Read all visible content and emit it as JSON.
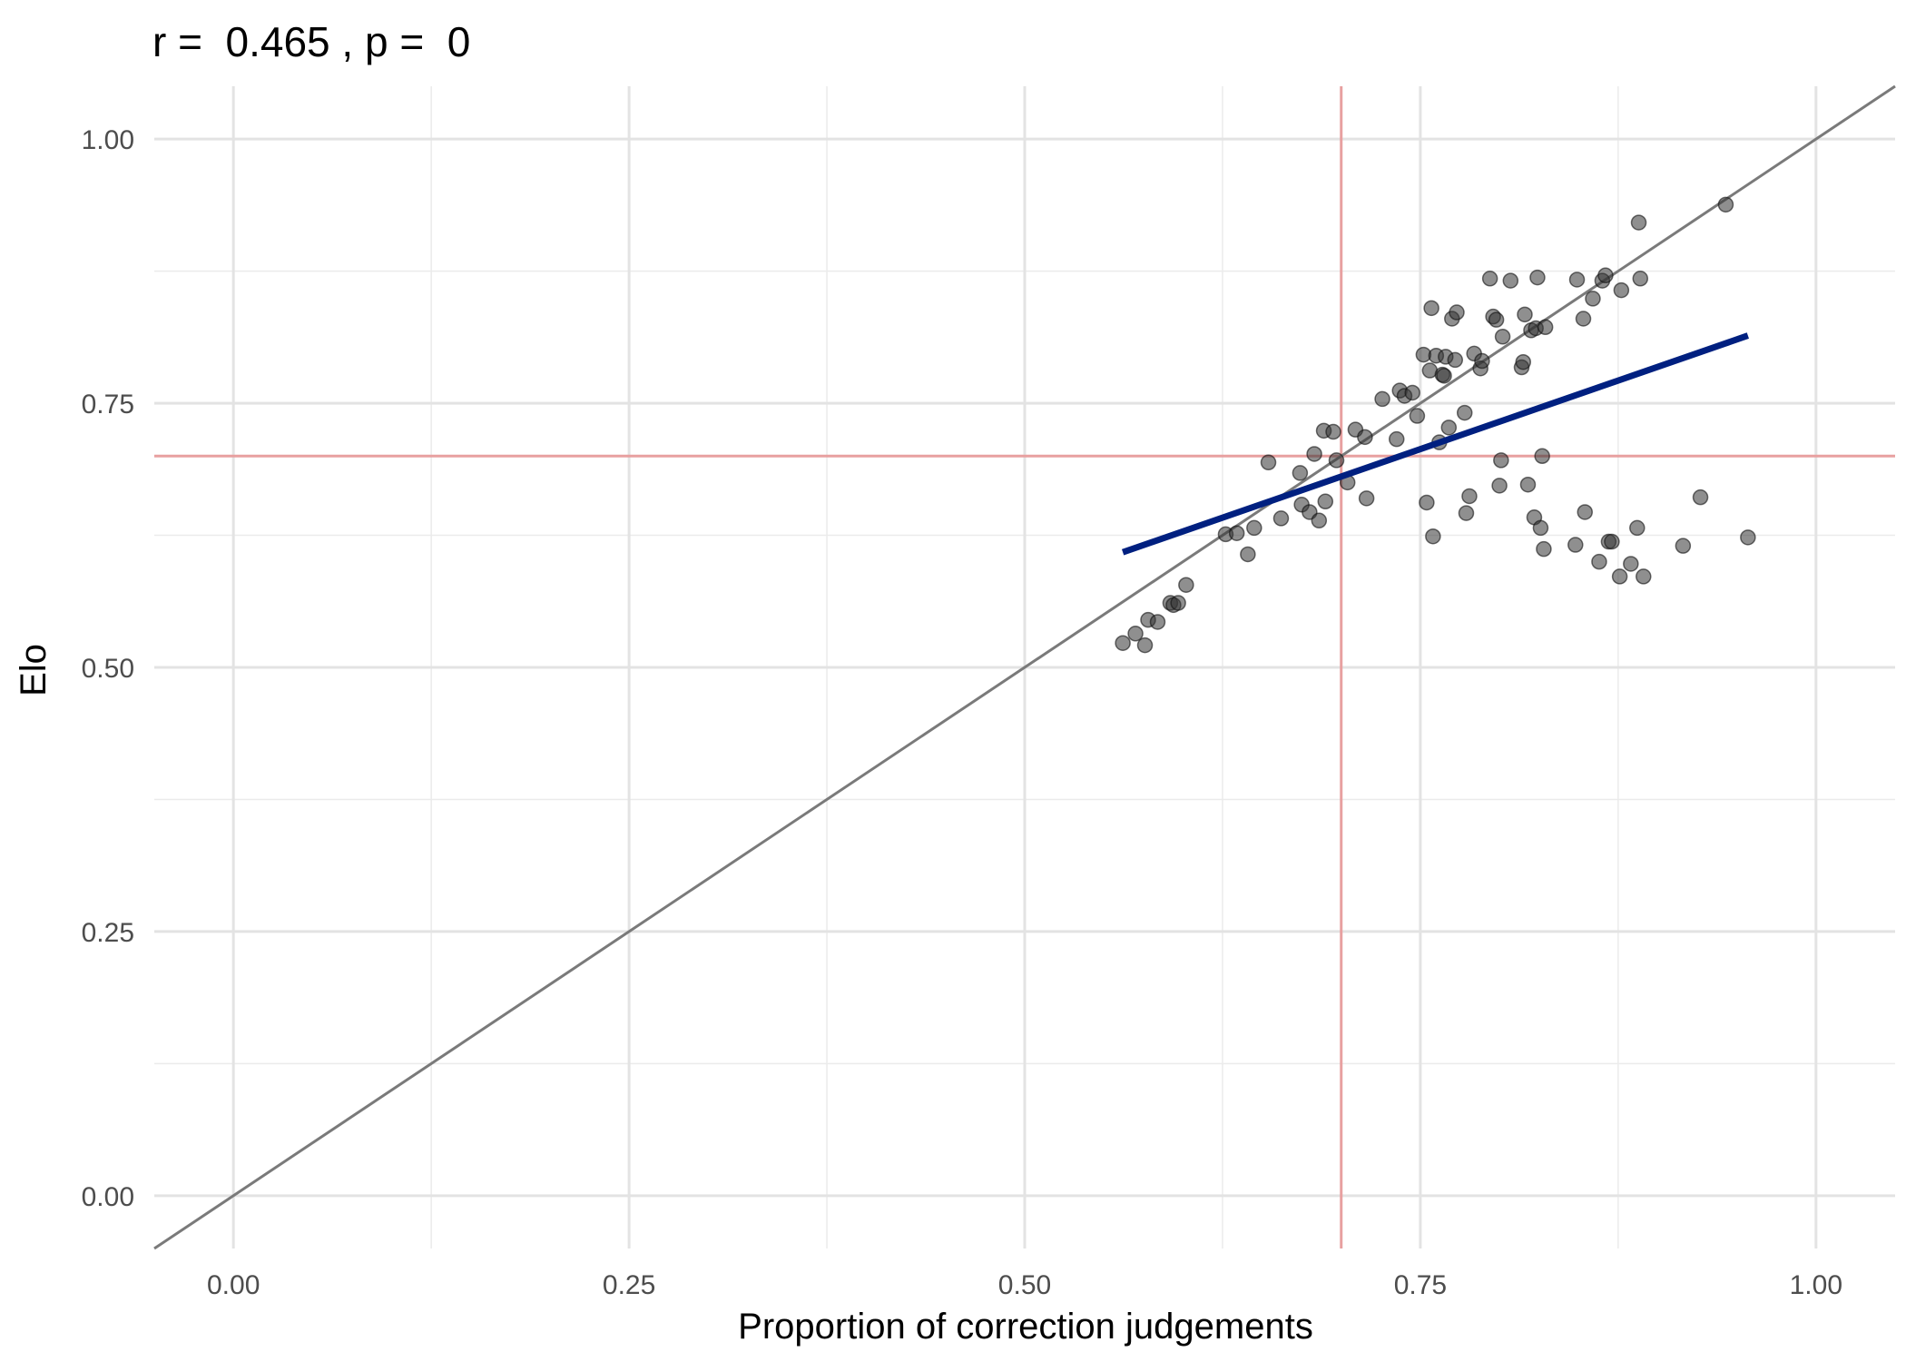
{
  "chart_data": {
    "type": "scatter",
    "title": "r =  0.465 , p =  0",
    "xlabel": "Proportion of correction judgements",
    "ylabel": "Elo",
    "xlim": [
      -0.05,
      1.05
    ],
    "ylim": [
      -0.05,
      1.05
    ],
    "x_ticks": [
      0.0,
      0.25,
      0.5,
      0.75,
      1.0
    ],
    "x_tick_labels": [
      "0.00",
      "0.25",
      "0.50",
      "0.75",
      "1.00"
    ],
    "y_ticks": [
      0.0,
      0.25,
      0.5,
      0.75,
      1.0
    ],
    "y_tick_labels": [
      "0.00",
      "0.25",
      "0.50",
      "0.75",
      "1.00"
    ],
    "grid": true,
    "reference_lines": {
      "diagonal": {
        "slope": 1,
        "intercept": 0,
        "color": "#7a7a7a"
      },
      "vline_x": 0.7,
      "hline_y": 0.7,
      "threshold_color": "#e8a0a0"
    },
    "fit_line": {
      "x": [
        0.562,
        0.957
      ],
      "y": [
        0.609,
        0.814
      ],
      "color": "#002080"
    },
    "point_color": "#333333",
    "points": [
      [
        0.562,
        0.523
      ],
      [
        0.57,
        0.532
      ],
      [
        0.576,
        0.521
      ],
      [
        0.578,
        0.545
      ],
      [
        0.584,
        0.543
      ],
      [
        0.592,
        0.561
      ],
      [
        0.594,
        0.559
      ],
      [
        0.597,
        0.561
      ],
      [
        0.602,
        0.578
      ],
      [
        0.627,
        0.626
      ],
      [
        0.634,
        0.627
      ],
      [
        0.641,
        0.607
      ],
      [
        0.645,
        0.632
      ],
      [
        0.654,
        0.694
      ],
      [
        0.662,
        0.641
      ],
      [
        0.674,
        0.684
      ],
      [
        0.675,
        0.654
      ],
      [
        0.68,
        0.647
      ],
      [
        0.683,
        0.702
      ],
      [
        0.686,
        0.639
      ],
      [
        0.689,
        0.724
      ],
      [
        0.69,
        0.657
      ],
      [
        0.695,
        0.723
      ],
      [
        0.697,
        0.696
      ],
      [
        0.704,
        0.675
      ],
      [
        0.709,
        0.725
      ],
      [
        0.715,
        0.718
      ],
      [
        0.716,
        0.66
      ],
      [
        0.726,
        0.754
      ],
      [
        0.735,
        0.716
      ],
      [
        0.737,
        0.762
      ],
      [
        0.74,
        0.757
      ],
      [
        0.745,
        0.76
      ],
      [
        0.748,
        0.738
      ],
      [
        0.752,
        0.796
      ],
      [
        0.754,
        0.656
      ],
      [
        0.756,
        0.781
      ],
      [
        0.757,
        0.84
      ],
      [
        0.758,
        0.624
      ],
      [
        0.76,
        0.795
      ],
      [
        0.762,
        0.713
      ],
      [
        0.764,
        0.777
      ],
      [
        0.765,
        0.776
      ],
      [
        0.766,
        0.794
      ],
      [
        0.768,
        0.727
      ],
      [
        0.77,
        0.83
      ],
      [
        0.772,
        0.791
      ],
      [
        0.773,
        0.836
      ],
      [
        0.778,
        0.741
      ],
      [
        0.779,
        0.646
      ],
      [
        0.781,
        0.662
      ],
      [
        0.784,
        0.797
      ],
      [
        0.788,
        0.783
      ],
      [
        0.789,
        0.79
      ],
      [
        0.794,
        0.868
      ],
      [
        0.796,
        0.832
      ],
      [
        0.798,
        0.829
      ],
      [
        0.8,
        0.672
      ],
      [
        0.801,
        0.696
      ],
      [
        0.802,
        0.813
      ],
      [
        0.807,
        0.866
      ],
      [
        0.814,
        0.784
      ],
      [
        0.815,
        0.789
      ],
      [
        0.816,
        0.834
      ],
      [
        0.818,
        0.673
      ],
      [
        0.82,
        0.819
      ],
      [
        0.822,
        0.642
      ],
      [
        0.823,
        0.821
      ],
      [
        0.824,
        0.869
      ],
      [
        0.826,
        0.632
      ],
      [
        0.827,
        0.7
      ],
      [
        0.828,
        0.612
      ],
      [
        0.829,
        0.822
      ],
      [
        0.848,
        0.616
      ],
      [
        0.849,
        0.867
      ],
      [
        0.853,
        0.83
      ],
      [
        0.854,
        0.647
      ],
      [
        0.859,
        0.849
      ],
      [
        0.863,
        0.6
      ],
      [
        0.865,
        0.866
      ],
      [
        0.867,
        0.871
      ],
      [
        0.869,
        0.619
      ],
      [
        0.871,
        0.619
      ],
      [
        0.876,
        0.586
      ],
      [
        0.877,
        0.857
      ],
      [
        0.883,
        0.598
      ],
      [
        0.887,
        0.632
      ],
      [
        0.888,
        0.921
      ],
      [
        0.889,
        0.868
      ],
      [
        0.891,
        0.586
      ],
      [
        0.916,
        0.615
      ],
      [
        0.927,
        0.661
      ],
      [
        0.943,
        0.938
      ],
      [
        0.957,
        0.623
      ]
    ]
  }
}
